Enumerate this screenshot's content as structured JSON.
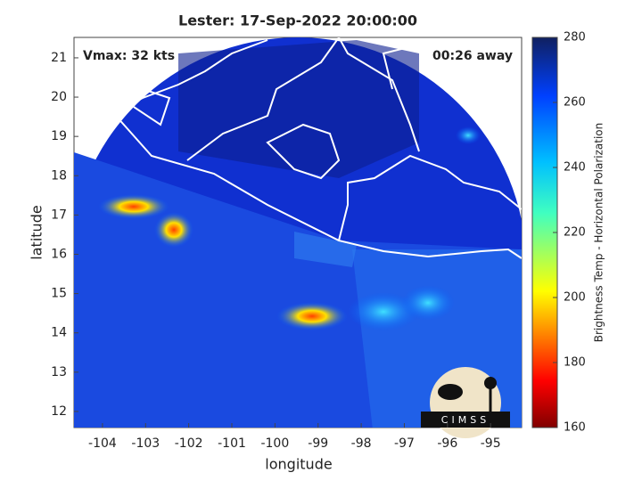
{
  "title": "Lester: 17-Sep-2022 20:00:00",
  "vmax_label": "Vmax: 32 kts",
  "time_label": "00:26 away",
  "logo_text": "CIMSS",
  "x_axis": {
    "label": "longitude",
    "lim": [
      -104.66,
      -94.28
    ],
    "ticks": [
      -104,
      -103,
      -102,
      -101,
      -100,
      -99,
      -98,
      -97,
      -96,
      -95
    ]
  },
  "y_axis": {
    "label": "latitude",
    "lim": [
      11.59,
      21.52
    ],
    "ticks": [
      12,
      13,
      14,
      15,
      16,
      17,
      18,
      19,
      20,
      21
    ]
  },
  "colorbar": {
    "label": "Brightness Temp - Horizontal Polarization",
    "lim": [
      160,
      280
    ],
    "ticks": [
      160,
      180,
      200,
      220,
      240,
      260,
      280
    ]
  }
}
